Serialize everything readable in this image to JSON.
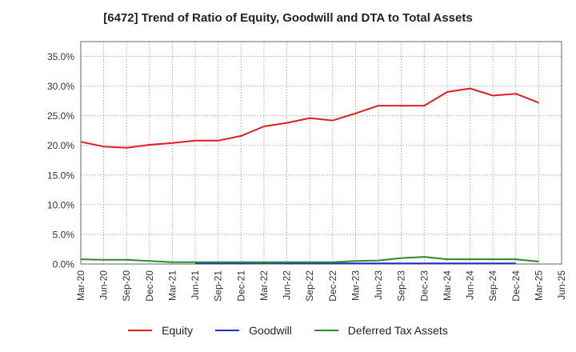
{
  "chart_data": {
    "type": "line",
    "title": "[6472]  Trend of Ratio of Equity, Goodwill and DTA to Total Assets",
    "xlabel": "",
    "ylabel": "",
    "ylim": [
      0,
      37.5
    ],
    "yticks": [
      "0.0%",
      "5.0%",
      "10.0%",
      "15.0%",
      "20.0%",
      "25.0%",
      "30.0%",
      "35.0%"
    ],
    "ytick_values": [
      0,
      5,
      10,
      15,
      20,
      25,
      30,
      35
    ],
    "categories": [
      "Mar-20",
      "Jun-20",
      "Sep-20",
      "Dec-20",
      "Mar-21",
      "Jun-21",
      "Sep-21",
      "Dec-21",
      "Mar-22",
      "Jun-22",
      "Sep-22",
      "Dec-22",
      "Mar-23",
      "Jun-23",
      "Sep-23",
      "Dec-23",
      "Mar-24",
      "Jun-24",
      "Sep-24",
      "Dec-24",
      "Mar-25",
      "Jun-25"
    ],
    "grid": true,
    "legend_position": "bottom",
    "series": [
      {
        "name": "Equity",
        "color": "#dd1f1f",
        "values": [
          20.6,
          19.8,
          19.6,
          20.1,
          20.4,
          20.8,
          20.8,
          21.6,
          23.2,
          23.8,
          24.6,
          24.2,
          25.4,
          26.7,
          26.7,
          26.7,
          29.0,
          29.6,
          28.4,
          28.7,
          27.2,
          null
        ]
      },
      {
        "name": "Goodwill",
        "color": "#1f2fcf",
        "values": [
          null,
          null,
          null,
          null,
          null,
          0.1,
          0.1,
          0.1,
          0.2,
          0.1,
          0.1,
          0.1,
          0.1,
          0.1,
          0.1,
          0.1,
          0.1,
          0.1,
          0.1,
          0.1,
          null,
          null
        ]
      },
      {
        "name": "Deferred Tax Assets",
        "color": "#2a8c2a",
        "values": [
          0.8,
          0.7,
          0.7,
          0.5,
          0.3,
          0.3,
          0.3,
          0.3,
          0.3,
          0.3,
          0.3,
          0.3,
          0.5,
          0.6,
          1.0,
          1.2,
          0.8,
          0.8,
          0.8,
          0.8,
          0.4,
          null
        ]
      }
    ]
  }
}
